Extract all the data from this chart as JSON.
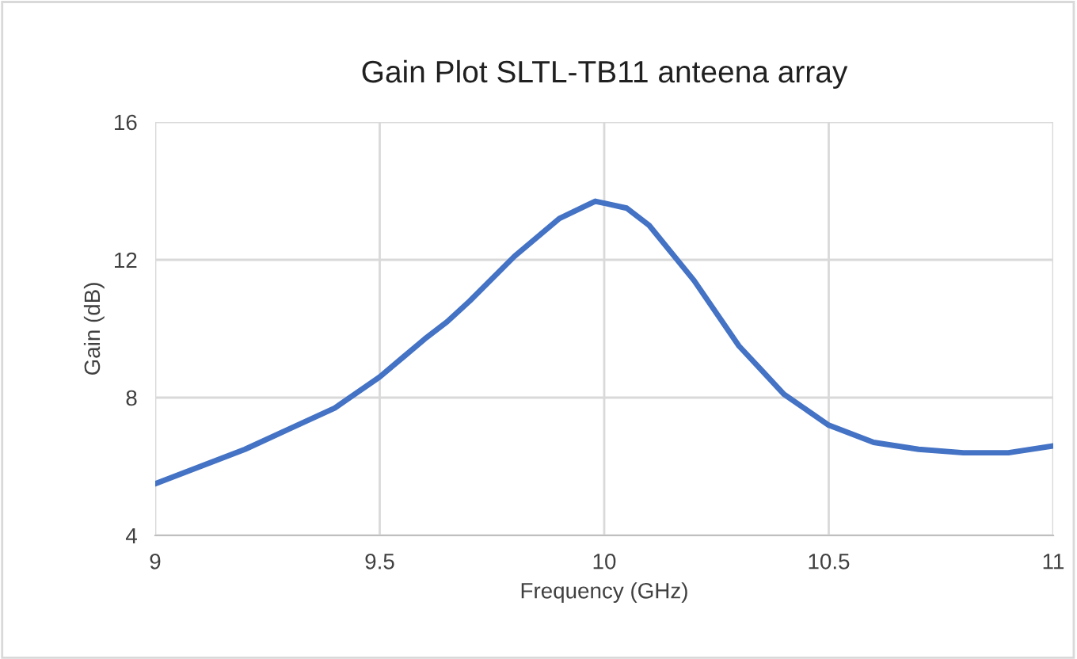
{
  "chart_data": {
    "type": "line",
    "title": "Gain Plot SLTL-TB11 anteena array",
    "xlabel": "Frequency (GHz)",
    "ylabel": "Gain (dB)",
    "x": [
      9,
      9.1,
      9.2,
      9.3,
      9.4,
      9.5,
      9.6,
      9.65,
      9.7,
      9.8,
      9.9,
      9.98,
      10.05,
      10.1,
      10.2,
      10.3,
      10.35,
      10.4,
      10.5,
      10.6,
      10.7,
      10.8,
      10.9,
      11
    ],
    "series": [
      {
        "color": "#4472c4",
        "values": [
          5.5,
          6.0,
          6.5,
          7.1,
          7.7,
          8.6,
          9.7,
          10.2,
          10.8,
          12.1,
          13.2,
          13.7,
          13.5,
          13.0,
          11.4,
          9.5,
          8.8,
          8.1,
          7.2,
          6.7,
          6.5,
          6.4,
          6.4,
          6.6
        ]
      }
    ],
    "xlim": [
      9,
      11
    ],
    "ylim": [
      4,
      16
    ],
    "xticks": [
      9,
      9.5,
      10,
      10.5,
      11
    ],
    "yticks": [
      4,
      8,
      12,
      16
    ],
    "grid": true,
    "line_style": "solid",
    "marker": "none"
  }
}
